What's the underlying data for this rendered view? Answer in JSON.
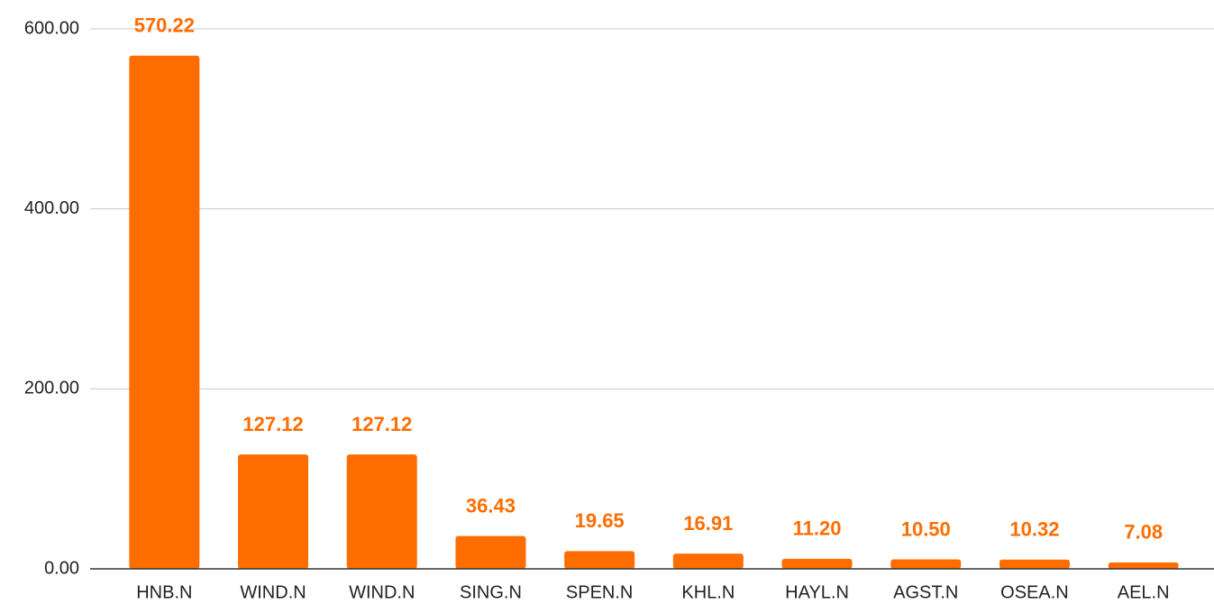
{
  "chart_data": {
    "type": "bar",
    "categories": [
      "HNB.N",
      "WIND.N",
      "WIND.N",
      "SING.N",
      "SPEN.N",
      "KHL.N",
      "HAYL.N",
      "AGST.N",
      "OSEA.N",
      "AEL.N"
    ],
    "values": [
      570.22,
      127.12,
      127.12,
      36.43,
      19.65,
      16.91,
      11.2,
      10.5,
      10.32,
      7.08
    ],
    "value_labels": [
      "570.22",
      "127.12",
      "127.12",
      "36.43",
      "19.65",
      "16.91",
      "11.20",
      "10.50",
      "10.32",
      "7.08"
    ],
    "color": "#ff6d00",
    "ylim": [
      0,
      600
    ],
    "yticks": [
      {
        "value": 0,
        "label": "0.00"
      },
      {
        "value": 200,
        "label": "200.00"
      },
      {
        "value": 400,
        "label": "400.00"
      },
      {
        "value": 600,
        "label": "600.00"
      }
    ],
    "grid": true
  }
}
